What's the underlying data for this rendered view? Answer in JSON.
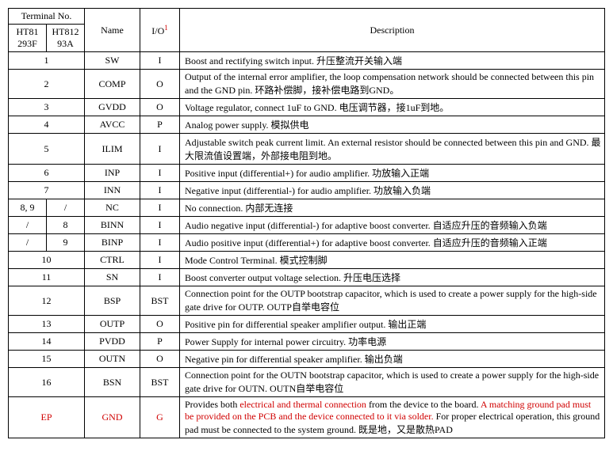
{
  "header": {
    "terminal_no": "Terminal No.",
    "chip1": "HT81\n293F",
    "chip2": "HT812\n93A",
    "name": "Name",
    "io": "I/O",
    "io_sup": "1",
    "description": "Description"
  },
  "rows": [
    {
      "t": "1",
      "t1": null,
      "t2": null,
      "name": "SW",
      "io": "I",
      "desc": "Boost and rectifying switch input.  升压整流开关输入端"
    },
    {
      "t": "2",
      "t1": null,
      "t2": null,
      "name": "COMP",
      "io": "O",
      "desc": "Output of the internal error amplifier, the loop compensation network should be connected between this pin and the GND pin.  环路补偿脚，接补偿电路到GND。"
    },
    {
      "t": "3",
      "t1": null,
      "t2": null,
      "name": "GVDD",
      "io": "O",
      "desc": "Voltage regulator, connect 1uF to GND.  电压调节器，接1uF到地。"
    },
    {
      "t": "4",
      "t1": null,
      "t2": null,
      "name": "AVCC",
      "io": "P",
      "desc": "Analog power supply.  模拟供电"
    },
    {
      "t": "5",
      "t1": null,
      "t2": null,
      "name": "ILIM",
      "io": "I",
      "desc": "Adjustable switch peak current limit. An external resistor should be connected between this pin and GND.  最大限流值设置端，外部接电阻到地。"
    },
    {
      "t": "6",
      "t1": null,
      "t2": null,
      "name": "INP",
      "io": "I",
      "desc": "Positive input (differential+) for audio amplifier.  功放输入正端"
    },
    {
      "t": "7",
      "t1": null,
      "t2": null,
      "name": "INN",
      "io": "I",
      "desc": "Negative input (differential-) for audio amplifier.  功放输入负端"
    },
    {
      "t": null,
      "t1": "8, 9",
      "t2": "/",
      "name": "NC",
      "io": "I",
      "desc": "No connection.  内部无连接"
    },
    {
      "t": null,
      "t1": "/",
      "t2": "8",
      "name": "BINN",
      "io": "I",
      "desc": "Audio negative input (differential-) for adaptive boost converter.  自适应升压的音频输入负端"
    },
    {
      "t": null,
      "t1": "/",
      "t2": "9",
      "name": "BINP",
      "io": "I",
      "desc": "Audio positive input (differential+) for adaptive boost converter.  自适应升压的音频输入正端"
    },
    {
      "t": "10",
      "t1": null,
      "t2": null,
      "name": "CTRL",
      "io": "I",
      "desc": "Mode Control Terminal.  模式控制脚"
    },
    {
      "t": "11",
      "t1": null,
      "t2": null,
      "name": "SN",
      "io": "I",
      "desc": "Boost converter output voltage selection.  升压电压选择"
    },
    {
      "t": "12",
      "t1": null,
      "t2": null,
      "name": "BSP",
      "io": "BST",
      "desc": "Connection point for the OUTP bootstrap capacitor, which is used to create a power supply for the high-side gate drive for OUTP. OUTP自举电容位"
    },
    {
      "t": "13",
      "t1": null,
      "t2": null,
      "name": "OUTP",
      "io": "O",
      "desc": "Positive pin for differential speaker amplifier output.  输出正端"
    },
    {
      "t": "14",
      "t1": null,
      "t2": null,
      "name": "PVDD",
      "io": "P",
      "desc": "Power Supply for internal power circuitry.  功率电源"
    },
    {
      "t": "15",
      "t1": null,
      "t2": null,
      "name": "OUTN",
      "io": "O",
      "desc": "Negative pin for differential speaker amplifier.  输出负端"
    },
    {
      "t": "16",
      "t1": null,
      "t2": null,
      "name": "BSN",
      "io": "BST",
      "desc": "Connection point for the OUTN bootstrap capacitor, which is used to create a power supply for the high-side gate drive for OUTN. OUTN自举电容位"
    }
  ],
  "ep_row": {
    "term": "EP",
    "name": "GND",
    "io": "G",
    "desc_pre": "Provides both ",
    "desc_red1": "electrical and thermal connection",
    "desc_mid1": " from the device to the board. ",
    "desc_red2": "A matching ground pad must be provided on the PCB and the device connected to it via solder.",
    "desc_post": " For proper electrical operation, this ground pad must be connected to the system ground.  既是地，又是散热PAD"
  }
}
